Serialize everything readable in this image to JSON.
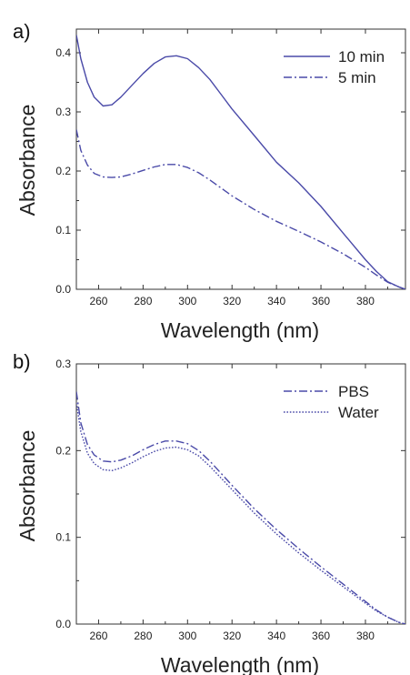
{
  "chart_data": [
    {
      "type": "line",
      "panel_label": "a)",
      "xlabel": "Wavelength (nm)",
      "ylabel": "Absorbance",
      "xlim": [
        250,
        398
      ],
      "ylim": [
        0,
        0.44
      ],
      "xticks": [
        260,
        280,
        300,
        320,
        340,
        360,
        380
      ],
      "yticks": [
        0.0,
        0.1,
        0.2,
        0.3,
        0.4
      ],
      "ytick_labels": [
        "0.0",
        "0.1",
        "0.2",
        "0.3",
        "0.4"
      ],
      "grid": false,
      "legend_position": "top-right",
      "color": "#4a4aa8",
      "series": [
        {
          "name": "10 min",
          "style": "solid",
          "x": [
            250,
            252,
            255,
            258,
            262,
            266,
            270,
            275,
            280,
            285,
            290,
            295,
            300,
            305,
            310,
            315,
            320,
            330,
            340,
            350,
            360,
            370,
            380,
            385,
            390,
            395,
            398
          ],
          "y": [
            0.43,
            0.39,
            0.35,
            0.325,
            0.31,
            0.312,
            0.325,
            0.345,
            0.365,
            0.382,
            0.393,
            0.395,
            0.39,
            0.375,
            0.355,
            0.33,
            0.305,
            0.26,
            0.215,
            0.18,
            0.14,
            0.095,
            0.05,
            0.03,
            0.013,
            0.004,
            0.0
          ]
        },
        {
          "name": "5 min",
          "style": "dashdot",
          "x": [
            250,
            252,
            255,
            258,
            262,
            266,
            270,
            275,
            280,
            285,
            290,
            295,
            300,
            305,
            310,
            320,
            330,
            340,
            350,
            360,
            370,
            380,
            385,
            390,
            395,
            398
          ],
          "y": [
            0.27,
            0.235,
            0.21,
            0.196,
            0.19,
            0.189,
            0.19,
            0.195,
            0.201,
            0.207,
            0.211,
            0.211,
            0.206,
            0.197,
            0.185,
            0.158,
            0.135,
            0.115,
            0.098,
            0.08,
            0.06,
            0.037,
            0.024,
            0.012,
            0.004,
            0.0
          ]
        }
      ]
    },
    {
      "type": "line",
      "panel_label": "b)",
      "xlabel": "Wavelength (nm)",
      "ylabel": "Absorbance",
      "xlim": [
        250,
        398
      ],
      "ylim": [
        0,
        0.3
      ],
      "xticks": [
        260,
        280,
        300,
        320,
        340,
        360,
        380
      ],
      "yticks": [
        0.0,
        0.1,
        0.2,
        0.3
      ],
      "ytick_labels": [
        "0.0",
        "0.1",
        "0.2",
        "0.3"
      ],
      "grid": false,
      "legend_position": "top-right",
      "color": "#4a4aa8",
      "series": [
        {
          "name": "PBS",
          "style": "dashdot",
          "x": [
            250,
            252,
            255,
            258,
            262,
            266,
            270,
            275,
            280,
            285,
            290,
            295,
            300,
            305,
            310,
            320,
            330,
            340,
            350,
            360,
            370,
            380,
            385,
            390,
            395,
            398
          ],
          "y": [
            0.268,
            0.232,
            0.207,
            0.195,
            0.188,
            0.187,
            0.189,
            0.194,
            0.201,
            0.207,
            0.211,
            0.211,
            0.208,
            0.2,
            0.188,
            0.16,
            0.133,
            0.109,
            0.087,
            0.066,
            0.046,
            0.026,
            0.016,
            0.008,
            0.002,
            0.0
          ]
        },
        {
          "name": "Water",
          "style": "dotted",
          "x": [
            250,
            252,
            255,
            258,
            262,
            266,
            270,
            275,
            280,
            285,
            290,
            295,
            300,
            305,
            310,
            320,
            330,
            340,
            350,
            360,
            370,
            380,
            385,
            390,
            395,
            398
          ],
          "y": [
            0.255,
            0.222,
            0.197,
            0.185,
            0.178,
            0.177,
            0.18,
            0.186,
            0.193,
            0.199,
            0.203,
            0.204,
            0.201,
            0.194,
            0.182,
            0.155,
            0.128,
            0.104,
            0.082,
            0.062,
            0.043,
            0.024,
            0.015,
            0.008,
            0.002,
            0.0
          ]
        }
      ]
    }
  ]
}
